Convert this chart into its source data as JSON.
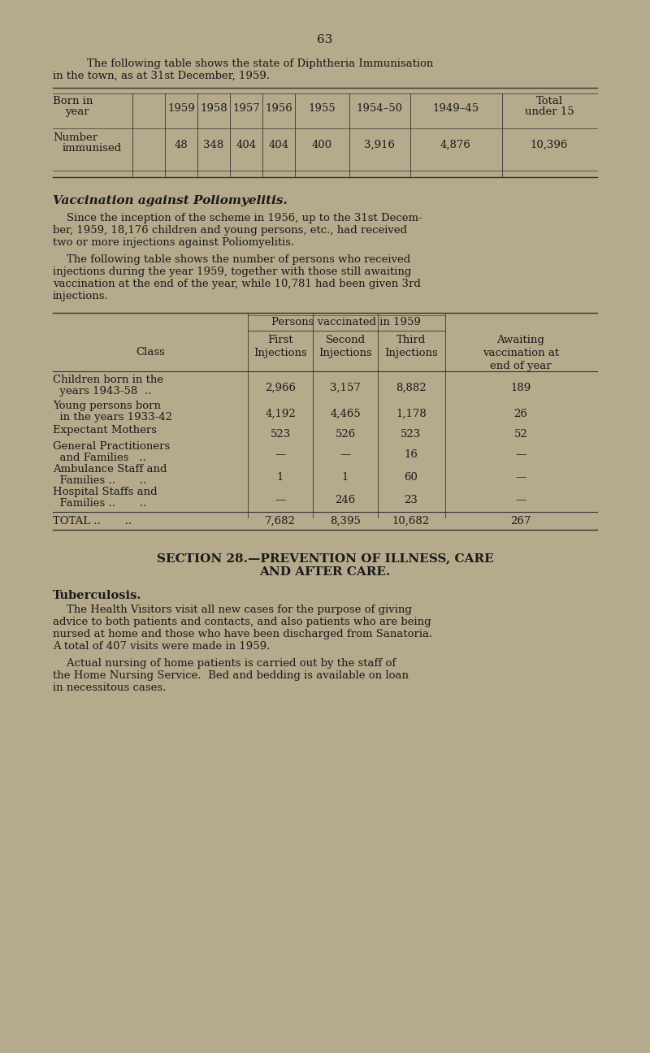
{
  "bg_color": "#b5aa8c",
  "text_color": "#1a1a1a",
  "page_number": "63",
  "intro_text1": "    The following table shows the state of Diphtheria Immunisation",
  "intro_text2": "in the town, as at 31st December, 1959.",
  "table1_col_labels": [
    "Born in\nyear",
    "1959",
    "1958",
    "1957",
    "1956",
    "1955",
    "1954–50",
    "1949–45",
    "Total\nunder 15"
  ],
  "table1_values": [
    "48",
    "348",
    "404",
    "404",
    "400",
    "3,916",
    "4,876",
    "10,396"
  ],
  "polio_heading": "Vaccination against Poliomyelitis.",
  "polio_para1a": "    Since the inception of the scheme in 1956, up to the 31st Decem-",
  "polio_para1b": "ber, 1959, 18,176 children and young persons, etc., had received",
  "polio_para1c": "two or more injections against Poliomyelitis.",
  "polio_para2a": "    The following table shows the number of persons who received",
  "polio_para2b": "injections during the year 1959, together with those still awaiting",
  "polio_para2c": "vaccination at the end of the year, while 10,781 had been given 3rd",
  "polio_para2d": "injections.",
  "table2_group_header": "Persons vaccinated in 1959",
  "table2_col_headers": [
    "Class",
    "First\nInjections",
    "Second\nInjections",
    "Third\nInjections",
    "Awaiting\nvaccination at\nend of year"
  ],
  "table2_rows": [
    [
      "Children born in the\n  years 1943-58  ..",
      "2,966",
      "3,157",
      "8,882",
      "189"
    ],
    [
      "Young persons born\n  in the years 1933-42",
      "4,192",
      "4,465",
      "1,178",
      "26"
    ],
    [
      "Expectant Mothers",
      "523",
      "526",
      "523",
      "52"
    ],
    [
      "General Practitioners\n  and Families   ..",
      "—",
      "—",
      "16",
      "—"
    ],
    [
      "Ambulance Staff and\n  Families ..       ..",
      "1",
      "1",
      "60",
      "—"
    ],
    [
      "Hospital Staffs and\n  Families ..       ..",
      "—",
      "246",
      "23",
      "—"
    ]
  ],
  "table2_total": [
    "TOTAL ..       ..",
    "7,682",
    "8,395",
    "10,682",
    "267"
  ],
  "section_line1": "SECTION 28.—PREVENTION OF ILLNESS, CARE",
  "section_line2": "AND AFTER CARE.",
  "tb_heading": "Tuberculosis.",
  "tb_para1a": "    The Health Visitors visit all new cases for the purpose of giving",
  "tb_para1b": "advice to both patients and contacts, and also patients who are being",
  "tb_para1c": "nursed at home and those who have been discharged from Sanatoria.",
  "tb_para1d": "A total of 407 visits were made in 1959.",
  "tb_para2a": "    Actual nursing of home patients is carried out by the staff of",
  "tb_para2b": "the Home Nursing Service.  Bed and bedding is available on loan",
  "tb_para2c": "in necessitous cases."
}
